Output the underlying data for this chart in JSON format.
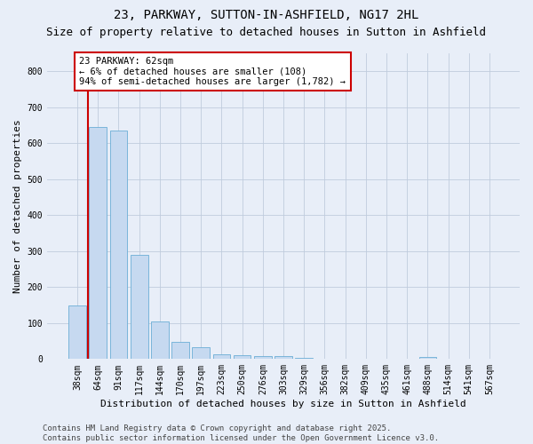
{
  "title1": "23, PARKWAY, SUTTON-IN-ASHFIELD, NG17 2HL",
  "title2": "Size of property relative to detached houses in Sutton in Ashfield",
  "xlabel": "Distribution of detached houses by size in Sutton in Ashfield",
  "ylabel": "Number of detached properties",
  "categories": [
    "38sqm",
    "64sqm",
    "91sqm",
    "117sqm",
    "144sqm",
    "170sqm",
    "197sqm",
    "223sqm",
    "250sqm",
    "276sqm",
    "303sqm",
    "329sqm",
    "356sqm",
    "382sqm",
    "409sqm",
    "435sqm",
    "461sqm",
    "488sqm",
    "514sqm",
    "541sqm",
    "567sqm"
  ],
  "values": [
    150,
    645,
    635,
    290,
    105,
    47,
    32,
    12,
    10,
    8,
    8,
    4,
    1,
    1,
    1,
    1,
    0,
    6,
    0,
    0,
    1
  ],
  "bar_color": "#c6d9f0",
  "bar_edge_color": "#6baed6",
  "highlight_color": "#cc0000",
  "annotation_text": "23 PARKWAY: 62sqm\n← 6% of detached houses are smaller (108)\n94% of semi-detached houses are larger (1,782) →",
  "annotation_box_color": "white",
  "annotation_box_edge_color": "#cc0000",
  "ylim": [
    0,
    850
  ],
  "yticks": [
    0,
    100,
    200,
    300,
    400,
    500,
    600,
    700,
    800
  ],
  "footer": "Contains HM Land Registry data © Crown copyright and database right 2025.\nContains public sector information licensed under the Open Government Licence v3.0.",
  "bg_color": "#e8eef8",
  "grid_color": "#c0ccdd",
  "title1_fontsize": 10,
  "title2_fontsize": 9,
  "xlabel_fontsize": 8,
  "ylabel_fontsize": 8,
  "tick_fontsize": 7,
  "annot_fontsize": 7.5,
  "footer_fontsize": 6.5,
  "red_line_x": 0.5
}
